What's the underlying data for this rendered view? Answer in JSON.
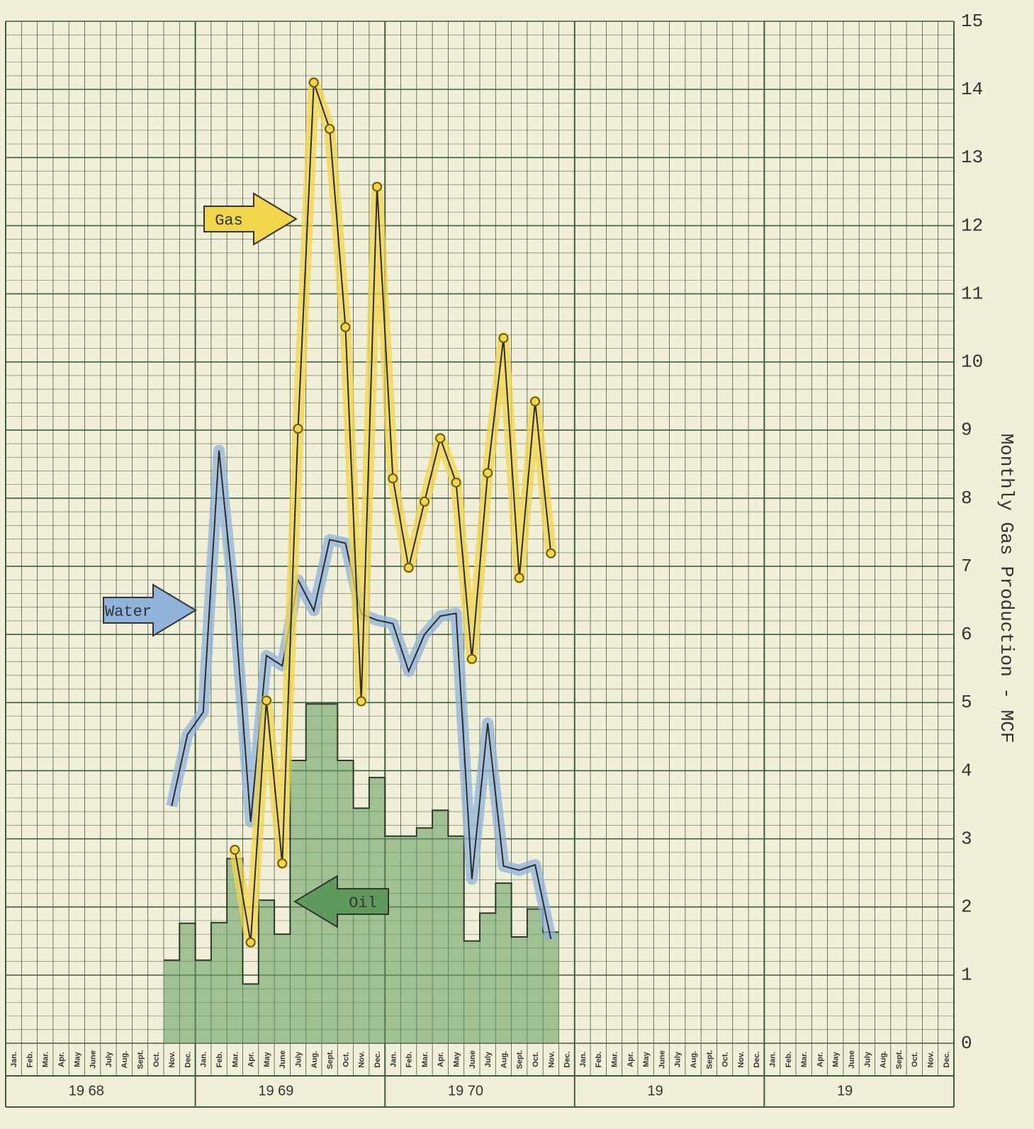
{
  "chart_data": {
    "type": "line",
    "y_axis_title": "Monthly Gas Production - MCF",
    "ylim": [
      0,
      15
    ],
    "yticks": [
      0,
      1,
      2,
      3,
      4,
      5,
      6,
      7,
      8,
      9,
      10,
      11,
      12,
      13,
      14,
      15
    ],
    "categories": [
      "Jan.",
      "Feb.",
      "Mar.",
      "Apr.",
      "May",
      "June",
      "July",
      "Aug.",
      "Sept.",
      "Oct.",
      "Nov.",
      "Dec.",
      "Jan.",
      "Feb.",
      "Mar.",
      "Apr.",
      "May",
      "June",
      "July",
      "Aug.",
      "Sept.",
      "Oct.",
      "Nov.",
      "Dec.",
      "Jan.",
      "Feb.",
      "Mar.",
      "Apr.",
      "May",
      "June",
      "July",
      "Aug.",
      "Sept.",
      "Oct.",
      "Nov.",
      "Dec.",
      "Jan.",
      "Feb.",
      "Mar.",
      "Apr.",
      "May",
      "June",
      "July",
      "Aug.",
      "Sept.",
      "Oct.",
      "Nov.",
      "Dec.",
      "Jan.",
      "Feb.",
      "Mar.",
      "Apr.",
      "May",
      "June",
      "July",
      "Aug.",
      "Sept.",
      "Oct.",
      "Nov.",
      "Dec."
    ],
    "years": [
      "19 68",
      "19 69",
      "19 70",
      "19",
      "19"
    ],
    "grid": true,
    "series": [
      {
        "name": "Gas",
        "color": "#f1d54a",
        "style": "points",
        "values": [
          null,
          null,
          null,
          null,
          null,
          null,
          null,
          null,
          null,
          null,
          null,
          null,
          null,
          null,
          2.84,
          1.48,
          5.03,
          2.64,
          9.02,
          14.1,
          13.42,
          10.51,
          5.02,
          12.57,
          8.29,
          6.98,
          7.95,
          8.88,
          8.23,
          5.64,
          8.37,
          10.35,
          6.83,
          9.42,
          7.19,
          null,
          null,
          null,
          null,
          null,
          null,
          null,
          null,
          null,
          null,
          null,
          null,
          null,
          null,
          null,
          null,
          null,
          null,
          null,
          null,
          null,
          null,
          null,
          null,
          null
        ]
      },
      {
        "name": "Water",
        "color": "#8fb3d9",
        "style": "line",
        "values": [
          null,
          null,
          null,
          null,
          null,
          null,
          null,
          null,
          null,
          null,
          3.48,
          4.53,
          4.86,
          8.7,
          6.37,
          3.25,
          5.69,
          5.54,
          6.8,
          6.35,
          7.39,
          7.34,
          6.3,
          6.21,
          6.16,
          5.46,
          6.0,
          6.27,
          6.31,
          2.41,
          4.7,
          2.6,
          2.54,
          2.62,
          1.53,
          null,
          null,
          null,
          null,
          null,
          null,
          null,
          null,
          null,
          null,
          null,
          null,
          null,
          null,
          null,
          null,
          null,
          null,
          null,
          null,
          null,
          null,
          null,
          null,
          null
        ]
      },
      {
        "name": "Oil",
        "color": "#5f9a5c",
        "style": "step",
        "values": [
          null,
          null,
          null,
          null,
          null,
          null,
          null,
          null,
          null,
          null,
          1.22,
          1.76,
          1.22,
          1.77,
          2.71,
          0.87,
          2.1,
          1.6,
          4.15,
          4.98,
          4.98,
          4.15,
          3.45,
          3.9,
          3.04,
          3.04,
          3.16,
          3.42,
          3.04,
          1.5,
          1.91,
          2.35,
          1.56,
          1.97,
          1.63,
          null,
          null,
          null,
          null,
          null,
          null,
          null,
          null,
          null,
          null,
          null,
          null,
          null,
          null,
          null,
          null,
          null,
          null,
          null,
          null,
          null,
          null,
          null,
          null,
          null
        ]
      }
    ]
  }
}
